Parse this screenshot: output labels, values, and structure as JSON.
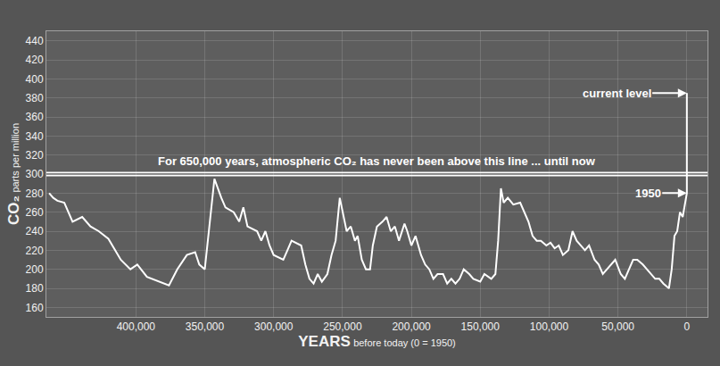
{
  "chart_data": {
    "type": "line",
    "x_label": "YEARS before today (0 = 1950)",
    "y_label": "CO₂ parts per million",
    "color": "#ffffff",
    "grid": true,
    "xlim": [
      465000,
      -15000
    ],
    "ylim": [
      150,
      450
    ],
    "xticks": [
      {
        "value": 400000,
        "label": "400,000"
      },
      {
        "value": 350000,
        "label": "350,000"
      },
      {
        "value": 300000,
        "label": "300,000"
      },
      {
        "value": 250000,
        "label": "250,000"
      },
      {
        "value": 200000,
        "label": "200,000"
      },
      {
        "value": 150000,
        "label": "150,000"
      },
      {
        "value": 100000,
        "label": "100,000"
      },
      {
        "value": 50000,
        "label": "50,000"
      },
      0
    ],
    "yticks": [
      160,
      180,
      200,
      220,
      240,
      260,
      280,
      300,
      320,
      340,
      360,
      380,
      400,
      420,
      440
    ],
    "x": [
      463000,
      460000,
      457000,
      452000,
      446000,
      439000,
      433000,
      427000,
      420000,
      417000,
      411000,
      404000,
      399000,
      392000,
      385000,
      376000,
      370000,
      363000,
      357000,
      354000,
      350000,
      347000,
      343000,
      338000,
      335000,
      329000,
      325000,
      322000,
      319000,
      312000,
      309000,
      306000,
      303000,
      300000,
      293000,
      290000,
      287000,
      280000,
      277000,
      274000,
      271000,
      268000,
      265000,
      261000,
      258000,
      255000,
      252000,
      247000,
      244000,
      241000,
      239000,
      236000,
      233000,
      230000,
      228000,
      225000,
      221000,
      218000,
      215000,
      212000,
      209000,
      205000,
      203000,
      200000,
      197000,
      193000,
      190000,
      187000,
      184000,
      181000,
      177000,
      174000,
      171000,
      168000,
      165000,
      162000,
      158000,
      155000,
      150000,
      147000,
      142000,
      139000,
      137000,
      135000,
      133000,
      130000,
      126000,
      121000,
      118000,
      115000,
      112000,
      109000,
      106000,
      102000,
      99000,
      96000,
      93000,
      90000,
      86000,
      83000,
      80000,
      77000,
      74000,
      71000,
      67000,
      64000,
      61000,
      58000,
      55000,
      52000,
      48000,
      45000,
      42000,
      39000,
      36000,
      32000,
      29000,
      26000,
      23000,
      20000,
      17000,
      13000,
      11000,
      9000,
      7000,
      5000,
      3000,
      0,
      0
    ],
    "values": [
      280,
      275,
      272,
      270,
      250,
      255,
      245,
      240,
      232,
      225,
      210,
      200,
      205,
      192,
      188,
      183,
      200,
      215,
      218,
      205,
      200,
      240,
      295,
      275,
      265,
      260,
      250,
      265,
      245,
      240,
      230,
      240,
      225,
      215,
      210,
      220,
      230,
      225,
      205,
      190,
      185,
      195,
      187,
      195,
      215,
      230,
      275,
      240,
      245,
      230,
      235,
      210,
      200,
      200,
      225,
      245,
      250,
      255,
      240,
      245,
      230,
      248,
      240,
      225,
      235,
      215,
      205,
      200,
      190,
      195,
      195,
      185,
      190,
      185,
      190,
      200,
      195,
      190,
      187,
      195,
      190,
      195,
      230,
      285,
      270,
      275,
      268,
      270,
      260,
      250,
      235,
      230,
      230,
      225,
      228,
      222,
      225,
      215,
      220,
      240,
      230,
      225,
      220,
      225,
      210,
      205,
      195,
      200,
      205,
      210,
      195,
      190,
      200,
      210,
      210,
      205,
      200,
      195,
      190,
      190,
      185,
      180,
      200,
      235,
      240,
      260,
      255,
      280,
      385
    ],
    "annotations": [
      {
        "text": "For 650,000 years, atmospheric CO₂ has never been above this line ... until now",
        "y": 300
      },
      {
        "text": "current level",
        "x": 0,
        "y": 385
      },
      {
        "text": "1950",
        "x": 0,
        "y": 280
      }
    ]
  }
}
